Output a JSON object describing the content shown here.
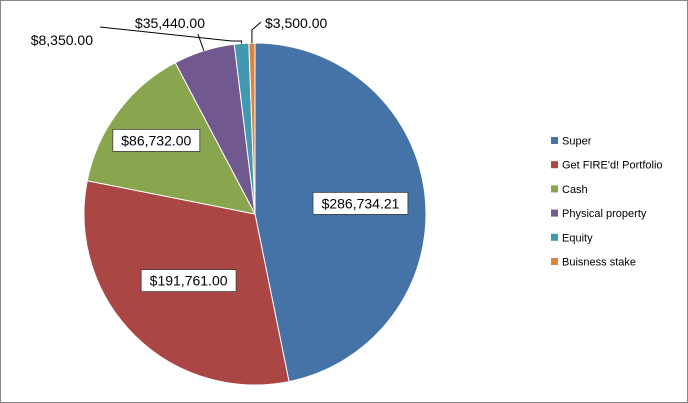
{
  "chart_data": {
    "type": "pie",
    "title": "",
    "categories": [
      "Super",
      "Get FIRE'd! Portfolio",
      "Cash",
      "Physical property",
      "Equity",
      "Buisness stake"
    ],
    "values": [
      286734.21,
      191761.0,
      86732.0,
      35440.0,
      8350.0,
      3500.0
    ],
    "data_labels": [
      "$286,734.21",
      "$191,761.00",
      "$86,732.00",
      "$35,440.00",
      "$8,350.00",
      "$3,500.00"
    ],
    "colors": [
      "#4572A7",
      "#AA4643",
      "#89A54E",
      "#71588F",
      "#4198AF",
      "#DB843D"
    ],
    "legend_position": "right",
    "start_angle_deg": 0,
    "direction": "clockwise"
  }
}
